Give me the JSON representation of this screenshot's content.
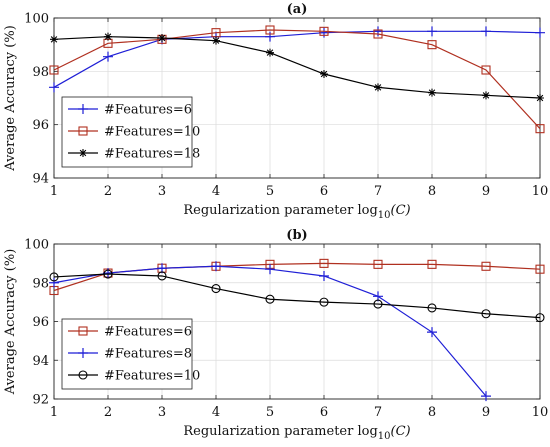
{
  "chart_data": [
    {
      "type": "line",
      "title": "(a)",
      "xlabel": "Regularization parameter log",
      "xlabel_sub": "10",
      "xlabel_tail": "(C)",
      "ylabel": "Average Accuracy (%)",
      "x": [
        1,
        2,
        3,
        4,
        5,
        6,
        7,
        8,
        9,
        10
      ],
      "xlim": [
        1,
        10
      ],
      "ylim": [
        94,
        100
      ],
      "yticks": [
        94,
        96,
        98,
        100
      ],
      "xticks": [
        1,
        2,
        3,
        4,
        5,
        6,
        7,
        8,
        9,
        10
      ],
      "grid": true,
      "legend_position": "lower-left",
      "series": [
        {
          "name": "#Features=6",
          "color": "#1f1fd6",
          "marker": "plus",
          "values": [
            97.4,
            98.55,
            99.2,
            99.3,
            99.3,
            99.45,
            99.5,
            99.5,
            99.5,
            99.45
          ]
        },
        {
          "name": "#Features=10",
          "color": "#b03020",
          "marker": "square",
          "values": [
            98.05,
            99.05,
            99.2,
            99.45,
            99.55,
            99.5,
            99.4,
            99.0,
            98.05,
            95.85
          ]
        },
        {
          "name": "#Features=18",
          "color": "#000000",
          "marker": "asterisk",
          "values": [
            99.2,
            99.3,
            99.25,
            99.15,
            98.7,
            97.9,
            97.4,
            97.2,
            97.1,
            97.0
          ]
        }
      ]
    },
    {
      "type": "line",
      "title": "(b)",
      "xlabel": "Regularization parameter log",
      "xlabel_sub": "10",
      "xlabel_tail": "(C)",
      "ylabel": "Average Accuracy (%)",
      "x": [
        1,
        2,
        3,
        4,
        5,
        6,
        7,
        8,
        9,
        10
      ],
      "xlim": [
        1,
        10
      ],
      "ylim": [
        92,
        100
      ],
      "yticks": [
        92,
        94,
        96,
        98,
        100
      ],
      "xticks": [
        1,
        2,
        3,
        4,
        5,
        6,
        7,
        8,
        9,
        10
      ],
      "grid": true,
      "legend_position": "lower-left",
      "series": [
        {
          "name": "#Features=6",
          "color": "#b03020",
          "marker": "square",
          "values": [
            97.6,
            98.5,
            98.75,
            98.85,
            98.95,
            99.0,
            98.95,
            98.95,
            98.85,
            98.7
          ]
        },
        {
          "name": "#Features=8",
          "color": "#1f1fd6",
          "marker": "plus",
          "values": [
            98.0,
            98.5,
            98.75,
            98.85,
            98.7,
            98.35,
            97.3,
            95.45,
            92.15,
            null
          ]
        },
        {
          "name": "#Features=10",
          "color": "#000000",
          "marker": "circle",
          "values": [
            98.3,
            98.45,
            98.35,
            97.7,
            97.15,
            97.0,
            96.9,
            96.7,
            96.4,
            96.2
          ]
        }
      ]
    }
  ]
}
